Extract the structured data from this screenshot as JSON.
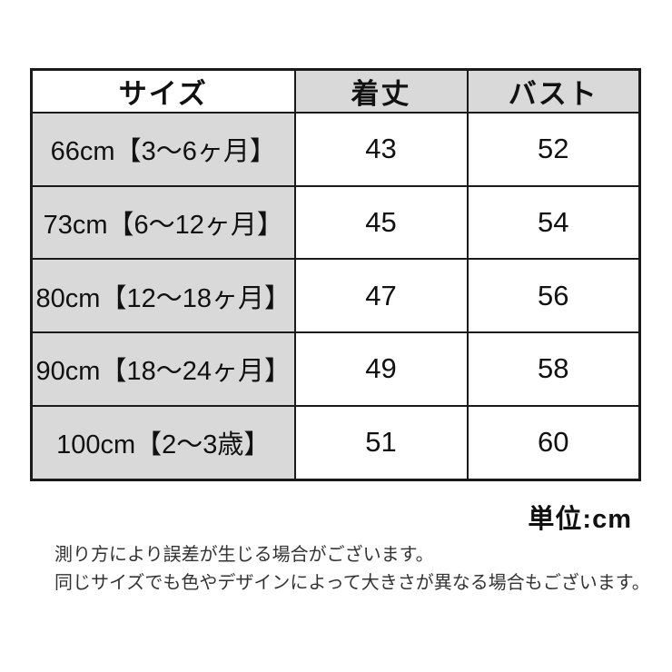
{
  "table": {
    "headers": [
      "サイズ",
      "着丈",
      "バスト"
    ],
    "rows": [
      {
        "size": "66cm【3〜6ヶ月】",
        "length": "43",
        "bust": "52"
      },
      {
        "size": "73cm【6〜12ヶ月】",
        "length": "45",
        "bust": "54"
      },
      {
        "size": "80cm【12〜18ヶ月】",
        "length": "47",
        "bust": "56"
      },
      {
        "size": "90cm【18〜24ヶ月】",
        "length": "49",
        "bust": "58"
      },
      {
        "size": "100cm【2〜3歳】",
        "length": "51",
        "bust": "60"
      }
    ]
  },
  "unit_label": "単位:cm",
  "notes": [
    "測り方により誤差が生じる場合がございます。",
    "同じサイズでも色やデザインによって大きさが異なる場合もございます。"
  ],
  "colors": {
    "cell_gray": "#d9d9d9",
    "border": "#1a1a1a",
    "table_text": "#111111",
    "note_text": "#333333",
    "background": "#ffffff"
  }
}
